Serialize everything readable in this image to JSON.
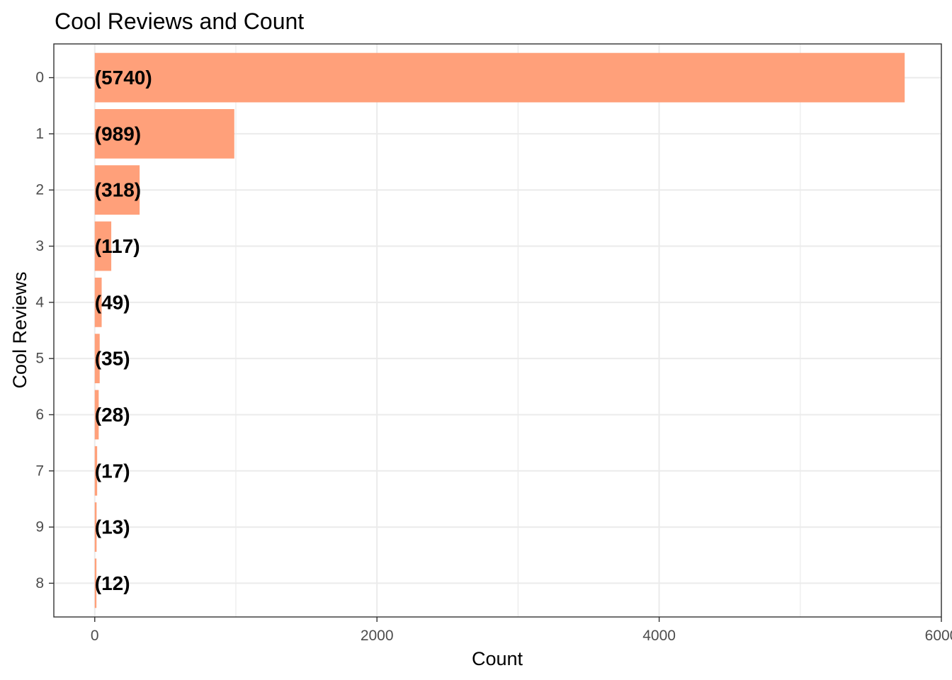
{
  "chart_data": {
    "type": "bar",
    "orientation": "horizontal",
    "title": "Cool Reviews and Count",
    "xlabel": "Count",
    "ylabel": "Cool Reviews",
    "categories": [
      "0",
      "1",
      "2",
      "3",
      "4",
      "5",
      "6",
      "7",
      "9",
      "8"
    ],
    "values": [
      5740,
      989,
      318,
      117,
      49,
      35,
      28,
      17,
      13,
      12
    ],
    "data_labels": [
      "(5740)",
      "(989)",
      "(318)",
      "(117)",
      "(49)",
      "(35)",
      "(28)",
      "(17)",
      "(13)",
      "(12)"
    ],
    "xlim": [
      -290,
      6000
    ],
    "x_ticks": [
      0,
      2000,
      4000,
      6000
    ],
    "x_tick_labels": [
      "0",
      "2000",
      "4000",
      "6000"
    ],
    "grid": true,
    "legend": "none",
    "bar_color": "#ffa07a",
    "grid_color": "#ebebeb",
    "panel_border_color": "#333333"
  }
}
